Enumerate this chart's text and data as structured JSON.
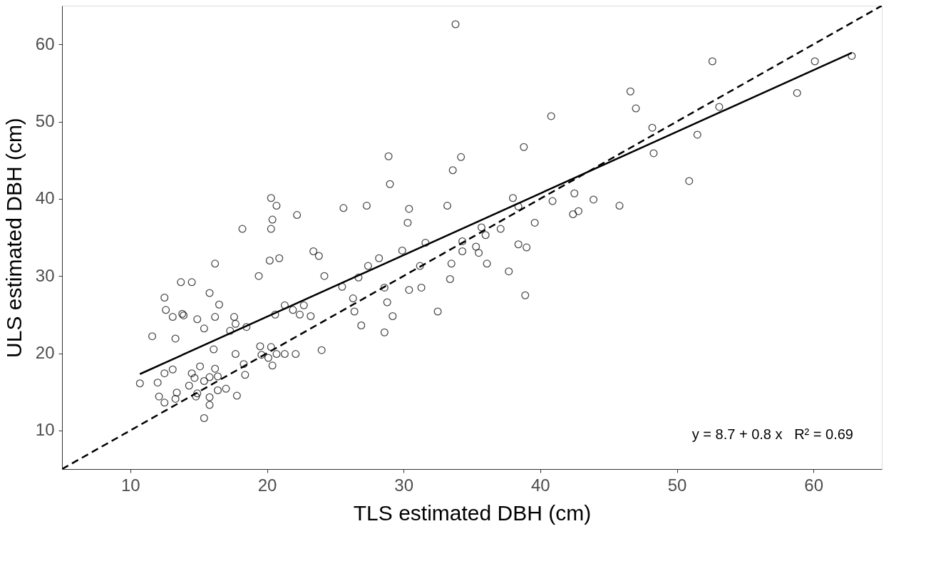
{
  "chart_data": {
    "type": "scatter",
    "xlabel": "TLS estimated DBH (cm)",
    "ylabel": "ULS estimated DBH (cm)",
    "xlim": [
      5,
      65
    ],
    "ylim": [
      5,
      65
    ],
    "xticks": [
      10,
      20,
      30,
      40,
      50,
      60
    ],
    "yticks": [
      10,
      20,
      30,
      40,
      50,
      60
    ],
    "annotations": [
      "y = 8.7 + 0.8 x   R² = 0.69"
    ],
    "series": [
      {
        "type": "scatter",
        "color": "#000000",
        "marker": "circle",
        "x": [
          10.7,
          11.6,
          12.0,
          12.1,
          12.5,
          12.5,
          12.5,
          12.6,
          13.1,
          13.1,
          13.3,
          13.4,
          13.3,
          13.7,
          13.8,
          13.9,
          14.5,
          14.3,
          14.5,
          14.7,
          14.8,
          14.9,
          14.9,
          15.1,
          15.4,
          15.4,
          15.4,
          15.8,
          15.8,
          15.8,
          15.8,
          16.1,
          16.2,
          16.2,
          16.4,
          16.4,
          16.2,
          16.5,
          17.0,
          17.8,
          17.6,
          17.7,
          17.3,
          17.7,
          18.2,
          18.4,
          18.3,
          18.5,
          19.4,
          19.5,
          19.6,
          20.1,
          20.3,
          20.4,
          20.7,
          20.2,
          20.9,
          20.3,
          20.4,
          20.3,
          20.7,
          20.6,
          21.3,
          21.3,
          21.9,
          22.4,
          22.1,
          22.2,
          22.7,
          23.2,
          23.4,
          23.8,
          24.0,
          24.2,
          25.5,
          25.6,
          26.3,
          26.4,
          26.9,
          26.7,
          27.3,
          27.4,
          28.2,
          28.6,
          28.6,
          28.8,
          28.9,
          29.0,
          29.2,
          29.9,
          30.4,
          30.3,
          30.4,
          31.2,
          31.3,
          31.6,
          32.5,
          33.2,
          33.6,
          33.8,
          33.5,
          33.4,
          34.2,
          34.3,
          34.3,
          35.3,
          35.5,
          35.7,
          36.0,
          36.1,
          37.1,
          37.7,
          38.0,
          38.4,
          38.4,
          39.0,
          38.9,
          38.8,
          39.6,
          40.8,
          40.9,
          42.4,
          42.5,
          42.8,
          43.9,
          45.8,
          46.6,
          47.0,
          48.2,
          48.3,
          50.9,
          51.5,
          53.1,
          52.6,
          58.8,
          60.1,
          62.8
        ],
        "values": [
          16.1,
          22.2,
          16.2,
          14.4,
          17.4,
          13.6,
          27.2,
          25.6,
          24.7,
          17.9,
          21.9,
          14.9,
          14.1,
          29.2,
          25.1,
          24.9,
          29.2,
          15.8,
          17.4,
          16.8,
          14.4,
          14.8,
          24.4,
          18.3,
          16.4,
          23.2,
          11.6,
          16.9,
          14.3,
          13.3,
          27.8,
          20.5,
          31.6,
          18.0,
          17.0,
          15.2,
          24.7,
          26.3,
          15.4,
          14.5,
          24.7,
          23.8,
          22.9,
          19.9,
          36.1,
          17.2,
          18.6,
          23.4,
          30.0,
          20.9,
          19.8,
          19.4,
          20.8,
          18.4,
          19.9,
          32.0,
          32.3,
          36.1,
          37.3,
          40.1,
          39.1,
          25.0,
          26.2,
          19.9,
          25.6,
          25.0,
          19.9,
          37.9,
          26.2,
          24.8,
          33.2,
          32.6,
          20.4,
          30.0,
          28.6,
          38.8,
          27.1,
          25.4,
          23.6,
          29.8,
          39.1,
          31.3,
          32.3,
          28.5,
          22.7,
          26.6,
          45.5,
          41.9,
          24.8,
          33.3,
          38.7,
          36.9,
          28.2,
          31.3,
          28.5,
          34.3,
          25.4,
          39.1,
          43.7,
          62.6,
          31.6,
          29.6,
          45.4,
          34.5,
          33.2,
          33.8,
          33.0,
          36.3,
          35.3,
          31.6,
          36.1,
          30.6,
          40.1,
          39.0,
          34.1,
          33.7,
          27.5,
          46.7,
          36.9,
          50.7,
          39.7,
          38.0,
          40.7,
          38.4,
          39.9,
          39.1,
          53.9,
          51.7,
          49.2,
          45.9,
          42.3,
          48.3,
          51.9,
          57.8,
          53.7,
          57.8,
          58.5
        ]
      },
      {
        "type": "line",
        "color": "#000000",
        "line_style": "solid",
        "marker": "none",
        "x": [
          10.7,
          62.8
        ],
        "values": [
          17.3,
          58.9
        ]
      },
      {
        "type": "line",
        "color": "#000000",
        "line_style": "dashed",
        "marker": "none",
        "x": [
          5,
          65
        ],
        "values": [
          5,
          65
        ]
      }
    ]
  }
}
